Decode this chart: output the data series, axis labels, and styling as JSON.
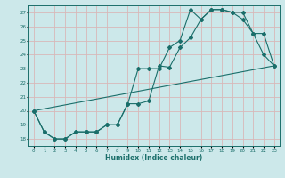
{
  "title": "",
  "xlabel": "Humidex (Indice chaleur)",
  "bg_color": "#cce8ea",
  "grid_color": "#d8b8b8",
  "line_color": "#1a6e6a",
  "xlim": [
    -0.5,
    23.5
  ],
  "ylim": [
    17.5,
    27.5
  ],
  "xticks": [
    0,
    1,
    2,
    3,
    4,
    5,
    6,
    7,
    8,
    9,
    10,
    11,
    12,
    13,
    14,
    15,
    16,
    17,
    18,
    19,
    20,
    21,
    22,
    23
  ],
  "yticks": [
    18,
    19,
    20,
    21,
    22,
    23,
    24,
    25,
    26,
    27
  ],
  "line1_x": [
    0,
    1,
    2,
    3,
    4,
    5,
    6,
    7,
    8,
    9,
    10,
    11,
    12,
    13,
    14,
    15,
    16,
    17,
    18,
    19,
    20,
    21,
    22,
    23
  ],
  "line1_y": [
    20,
    18.5,
    18,
    18,
    18.5,
    18.5,
    18.5,
    19,
    19,
    20.5,
    23,
    23,
    23,
    24.5,
    25,
    27.2,
    26.5,
    27.2,
    27.2,
    27,
    27,
    25.5,
    24,
    23.2
  ],
  "line2_x": [
    0,
    1,
    2,
    3,
    4,
    5,
    6,
    7,
    8,
    9,
    10,
    11,
    12,
    13,
    14,
    15,
    16,
    17,
    18,
    19,
    20,
    21,
    22,
    23
  ],
  "line2_y": [
    20,
    18.5,
    18,
    18,
    18.5,
    18.5,
    18.5,
    19,
    19,
    20.5,
    20.5,
    20.7,
    23.2,
    23.1,
    24.5,
    25.2,
    26.5,
    27.2,
    27.2,
    27.0,
    26.5,
    25.5,
    25.5,
    23.2
  ],
  "line3_x": [
    0,
    23
  ],
  "line3_y": [
    20,
    23.2
  ]
}
